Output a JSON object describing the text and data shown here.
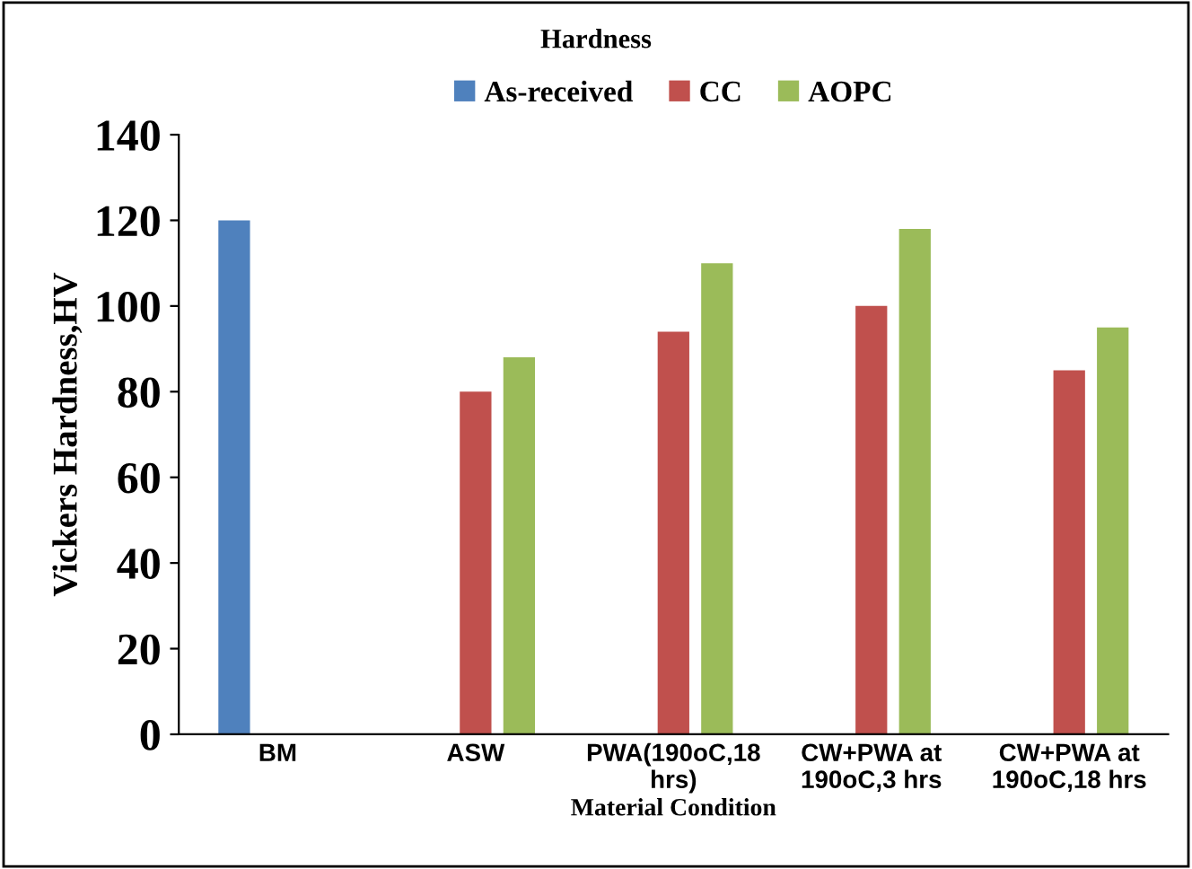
{
  "chart_data": {
    "type": "bar",
    "title": "Hardness",
    "xlabel": "Material Condition",
    "ylabel": "Vickers Hardness,HV",
    "categories": [
      "BM",
      "ASW",
      "PWA(190oC,18\nhrs)",
      "CW+PWA at\n190oC,3 hrs",
      "CW+PWA at\n190oC,18 hrs"
    ],
    "series": [
      {
        "name": "As-received",
        "color": "#4f81bd",
        "values": [
          120,
          null,
          null,
          null,
          null
        ]
      },
      {
        "name": "CC",
        "color": "#c0504d",
        "values": [
          null,
          80,
          94,
          100,
          85
        ]
      },
      {
        "name": "AOPC",
        "color": "#9bbb59",
        "values": [
          null,
          88,
          110,
          118,
          95
        ]
      }
    ],
    "ylim": [
      0,
      140
    ],
    "yticks": [
      0,
      20,
      40,
      60,
      80,
      100,
      120,
      140
    ],
    "grid": false,
    "legend": "top"
  }
}
